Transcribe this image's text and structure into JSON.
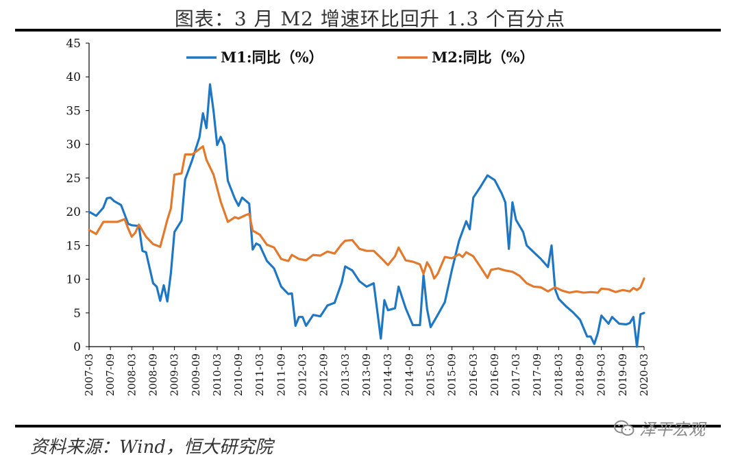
{
  "header": {
    "title": "图表：3 月 M2 增速环比回升 1.3 个百分点"
  },
  "footer": {
    "source": "资料来源：Wind，恒大研究院",
    "watermark": "泽平宏观"
  },
  "icons": {
    "watermark_icon": "wechat-bubbles-icon"
  },
  "colors": {
    "m1": "#1f77c4",
    "m2": "#e2792c",
    "axis": "#000000"
  },
  "chart_data": {
    "type": "line",
    "title": "",
    "xlabel": "",
    "ylabel": "",
    "ylim": [
      0,
      45
    ],
    "yticks": [
      0,
      5,
      10,
      15,
      20,
      25,
      30,
      35,
      40,
      45
    ],
    "xticks": [
      "2007-03",
      "2007-09",
      "2008-03",
      "2008-09",
      "2009-03",
      "2009-09",
      "2010-03",
      "2010-09",
      "2011-03",
      "2011-09",
      "2012-03",
      "2012-09",
      "2013-03",
      "2013-09",
      "2014-03",
      "2014-09",
      "2015-03",
      "2015-09",
      "2016-03",
      "2016-09",
      "2017-03",
      "2017-09",
      "2018-03",
      "2018-09",
      "2019-03",
      "2019-09",
      "2020-03"
    ],
    "legend_position": "top",
    "series": [
      {
        "name": "M1:同比（%）",
        "points": [
          [
            "2007-03",
            20.0
          ],
          [
            "2007-05",
            19.4
          ],
          [
            "2007-07",
            20.6
          ],
          [
            "2007-08",
            22.0
          ],
          [
            "2007-09",
            22.1
          ],
          [
            "2007-10",
            21.6
          ],
          [
            "2007-12",
            21.0
          ],
          [
            "2008-02",
            18.2
          ],
          [
            "2008-03",
            18.0
          ],
          [
            "2008-05",
            17.9
          ],
          [
            "2008-06",
            14.2
          ],
          [
            "2008-07",
            14.0
          ],
          [
            "2008-09",
            9.4
          ],
          [
            "2008-10",
            8.9
          ],
          [
            "2008-11",
            6.8
          ],
          [
            "2008-12",
            9.1
          ],
          [
            "2009-01",
            6.7
          ],
          [
            "2009-02",
            10.9
          ],
          [
            "2009-03",
            17.0
          ],
          [
            "2009-05",
            18.7
          ],
          [
            "2009-06",
            24.8
          ],
          [
            "2009-08",
            27.7
          ],
          [
            "2009-10",
            31.0
          ],
          [
            "2009-11",
            34.6
          ],
          [
            "2009-12",
            32.4
          ],
          [
            "2010-01",
            38.9
          ],
          [
            "2010-02",
            34.9
          ],
          [
            "2010-03",
            29.9
          ],
          [
            "2010-04",
            31.1
          ],
          [
            "2010-05",
            29.9
          ],
          [
            "2010-06",
            24.6
          ],
          [
            "2010-08",
            21.9
          ],
          [
            "2010-09",
            20.9
          ],
          [
            "2010-10",
            22.1
          ],
          [
            "2010-12",
            21.2
          ],
          [
            "2011-01",
            14.4
          ],
          [
            "2011-02",
            15.3
          ],
          [
            "2011-03",
            15.0
          ],
          [
            "2011-05",
            12.7
          ],
          [
            "2011-07",
            11.6
          ],
          [
            "2011-09",
            8.9
          ],
          [
            "2011-11",
            7.8
          ],
          [
            "2011-12",
            7.9
          ],
          [
            "2012-01",
            3.1
          ],
          [
            "2012-02",
            4.4
          ],
          [
            "2012-03",
            4.4
          ],
          [
            "2012-04",
            3.1
          ],
          [
            "2012-06",
            4.7
          ],
          [
            "2012-08",
            4.5
          ],
          [
            "2012-10",
            6.1
          ],
          [
            "2012-12",
            6.5
          ],
          [
            "2013-02",
            9.5
          ],
          [
            "2013-03",
            11.9
          ],
          [
            "2013-05",
            11.3
          ],
          [
            "2013-07",
            9.7
          ],
          [
            "2013-09",
            8.9
          ],
          [
            "2013-11",
            9.4
          ],
          [
            "2014-01",
            1.2
          ],
          [
            "2014-02",
            6.9
          ],
          [
            "2014-03",
            5.4
          ],
          [
            "2014-05",
            5.7
          ],
          [
            "2014-06",
            8.9
          ],
          [
            "2014-08",
            5.7
          ],
          [
            "2014-10",
            3.2
          ],
          [
            "2014-12",
            3.2
          ],
          [
            "2015-01",
            10.6
          ],
          [
            "2015-02",
            5.6
          ],
          [
            "2015-03",
            2.9
          ],
          [
            "2015-05",
            4.7
          ],
          [
            "2015-07",
            6.6
          ],
          [
            "2015-09",
            11.4
          ],
          [
            "2015-11",
            15.7
          ],
          [
            "2016-01",
            18.6
          ],
          [
            "2016-02",
            17.4
          ],
          [
            "2016-03",
            22.1
          ],
          [
            "2016-05",
            23.7
          ],
          [
            "2016-07",
            25.4
          ],
          [
            "2016-09",
            24.7
          ],
          [
            "2016-11",
            22.7
          ],
          [
            "2016-12",
            21.4
          ],
          [
            "2017-01",
            14.5
          ],
          [
            "2017-02",
            21.4
          ],
          [
            "2017-03",
            18.8
          ],
          [
            "2017-05",
            17.0
          ],
          [
            "2017-06",
            15.0
          ],
          [
            "2017-08",
            14.0
          ],
          [
            "2017-10",
            13.0
          ],
          [
            "2017-12",
            11.8
          ],
          [
            "2018-01",
            15.0
          ],
          [
            "2018-02",
            8.5
          ],
          [
            "2018-03",
            7.1
          ],
          [
            "2018-05",
            6.0
          ],
          [
            "2018-07",
            5.1
          ],
          [
            "2018-09",
            4.0
          ],
          [
            "2018-11",
            1.5
          ],
          [
            "2018-12",
            1.5
          ],
          [
            "2019-01",
            0.4
          ],
          [
            "2019-02",
            2.0
          ],
          [
            "2019-03",
            4.6
          ],
          [
            "2019-05",
            3.4
          ],
          [
            "2019-06",
            4.4
          ],
          [
            "2019-08",
            3.4
          ],
          [
            "2019-10",
            3.3
          ],
          [
            "2019-11",
            3.5
          ],
          [
            "2019-12",
            4.4
          ],
          [
            "2020-01",
            0.0
          ],
          [
            "2020-02",
            4.8
          ],
          [
            "2020-03",
            5.0
          ]
        ]
      },
      {
        "name": "M2:同比（%）",
        "points": [
          [
            "2007-03",
            17.3
          ],
          [
            "2007-05",
            16.7
          ],
          [
            "2007-07",
            18.5
          ],
          [
            "2007-09",
            18.5
          ],
          [
            "2007-11",
            18.5
          ],
          [
            "2008-01",
            18.9
          ],
          [
            "2008-02",
            17.5
          ],
          [
            "2008-03",
            16.3
          ],
          [
            "2008-04",
            16.9
          ],
          [
            "2008-05",
            18.1
          ],
          [
            "2008-07",
            16.3
          ],
          [
            "2008-09",
            15.2
          ],
          [
            "2008-11",
            14.8
          ],
          [
            "2009-01",
            18.8
          ],
          [
            "2009-02",
            20.5
          ],
          [
            "2009-03",
            25.5
          ],
          [
            "2009-05",
            25.7
          ],
          [
            "2009-06",
            28.5
          ],
          [
            "2009-08",
            28.5
          ],
          [
            "2009-10",
            29.3
          ],
          [
            "2009-11",
            29.7
          ],
          [
            "2009-12",
            27.7
          ],
          [
            "2010-02",
            25.5
          ],
          [
            "2010-04",
            21.5
          ],
          [
            "2010-06",
            18.5
          ],
          [
            "2010-08",
            19.2
          ],
          [
            "2010-09",
            19.0
          ],
          [
            "2010-11",
            19.5
          ],
          [
            "2010-12",
            19.7
          ],
          [
            "2011-01",
            17.2
          ],
          [
            "2011-03",
            16.6
          ],
          [
            "2011-05",
            15.1
          ],
          [
            "2011-07",
            14.7
          ],
          [
            "2011-09",
            13.0
          ],
          [
            "2011-11",
            12.7
          ],
          [
            "2011-12",
            13.6
          ],
          [
            "2012-02",
            13.0
          ],
          [
            "2012-04",
            12.8
          ],
          [
            "2012-06",
            13.6
          ],
          [
            "2012-08",
            13.5
          ],
          [
            "2012-10",
            14.1
          ],
          [
            "2012-12",
            13.8
          ],
          [
            "2013-02",
            15.2
          ],
          [
            "2013-03",
            15.7
          ],
          [
            "2013-05",
            15.8
          ],
          [
            "2013-07",
            14.5
          ],
          [
            "2013-09",
            14.2
          ],
          [
            "2013-11",
            14.2
          ],
          [
            "2014-01",
            13.2
          ],
          [
            "2014-03",
            12.1
          ],
          [
            "2014-05",
            13.4
          ],
          [
            "2014-06",
            14.7
          ],
          [
            "2014-08",
            12.8
          ],
          [
            "2014-10",
            12.6
          ],
          [
            "2014-12",
            12.2
          ],
          [
            "2015-01",
            10.8
          ],
          [
            "2015-02",
            12.5
          ],
          [
            "2015-03",
            11.6
          ],
          [
            "2015-04",
            10.1
          ],
          [
            "2015-05",
            10.8
          ],
          [
            "2015-07",
            13.3
          ],
          [
            "2015-09",
            13.1
          ],
          [
            "2015-11",
            13.7
          ],
          [
            "2015-12",
            13.3
          ],
          [
            "2016-01",
            14.0
          ],
          [
            "2016-03",
            13.4
          ],
          [
            "2016-05",
            11.8
          ],
          [
            "2016-07",
            10.2
          ],
          [
            "2016-08",
            11.4
          ],
          [
            "2016-10",
            11.6
          ],
          [
            "2016-12",
            11.3
          ],
          [
            "2017-02",
            11.1
          ],
          [
            "2017-04",
            10.5
          ],
          [
            "2017-06",
            9.4
          ],
          [
            "2017-08",
            8.9
          ],
          [
            "2017-10",
            8.8
          ],
          [
            "2017-12",
            8.2
          ],
          [
            "2018-02",
            8.8
          ],
          [
            "2018-04",
            8.3
          ],
          [
            "2018-06",
            8.0
          ],
          [
            "2018-08",
            8.2
          ],
          [
            "2018-10",
            8.0
          ],
          [
            "2018-12",
            8.1
          ],
          [
            "2019-02",
            8.0
          ],
          [
            "2019-03",
            8.6
          ],
          [
            "2019-05",
            8.5
          ],
          [
            "2019-07",
            8.1
          ],
          [
            "2019-09",
            8.4
          ],
          [
            "2019-11",
            8.2
          ],
          [
            "2019-12",
            8.7
          ],
          [
            "2020-01",
            8.4
          ],
          [
            "2020-02",
            8.8
          ],
          [
            "2020-03",
            10.1
          ]
        ]
      }
    ]
  }
}
